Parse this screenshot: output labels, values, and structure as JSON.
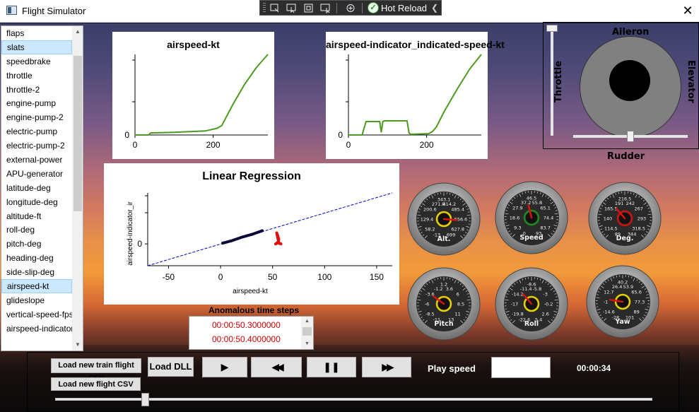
{
  "window": {
    "title": "Flight Simulator",
    "close_glyph": "✕"
  },
  "devtools": {
    "hot_reload_label": "Hot Reload",
    "check_glyph": "✓",
    "collapse_glyph": "❮"
  },
  "sidebar": {
    "selected": [
      "slats",
      "airspeed-kt"
    ],
    "items": [
      "flaps",
      "slats",
      "speedbrake",
      "throttle",
      "throttle-2",
      "engine-pump",
      "engine-pump-2",
      "electric-pump",
      "electric-pump-2",
      "external-power",
      "APU-generator",
      "latitude-deg",
      "longitude-deg",
      "altitude-ft",
      "roll-deg",
      "pitch-deg",
      "heading-deg",
      "side-slip-deg",
      "airspeed-kt",
      "glideslope",
      "vertical-speed-fps",
      "airspeed-indicator_indicated-speed-kt"
    ]
  },
  "charts": [
    {
      "type": "line",
      "title": "airspeed-kt",
      "color": "#4d9a1e",
      "x_ticks": [
        "0",
        "200"
      ],
      "y_ticks": [
        "0"
      ],
      "xlim": [
        0,
        340
      ],
      "ylim": [
        0,
        120
      ],
      "x": [
        0,
        35,
        40,
        100,
        180,
        210,
        222,
        232,
        250,
        280,
        310,
        340
      ],
      "y": [
        0,
        0,
        3,
        4,
        6,
        10,
        14,
        25,
        45,
        75,
        100,
        120
      ]
    },
    {
      "type": "line",
      "title": "airspeed-indicator_indicated-speed-kt",
      "color": "#4d9a1e",
      "x_ticks": [
        "0",
        "200"
      ],
      "y_ticks": [
        "0"
      ],
      "xlim": [
        0,
        340
      ],
      "ylim": [
        0,
        120
      ],
      "x": [
        0,
        35,
        45,
        80,
        84,
        88,
        92,
        100,
        150,
        155,
        160,
        205,
        215,
        225,
        245,
        280,
        310,
        340
      ],
      "y": [
        0,
        0,
        20,
        20,
        4,
        20,
        21,
        21,
        21,
        3,
        1,
        2,
        5,
        12,
        35,
        70,
        98,
        120
      ]
    },
    {
      "type": "scatter",
      "title": "Linear Regression",
      "xlabel": "airspeed-kt",
      "ylabel": "airspeed-indicator_ir",
      "x_ticks": [
        "-50",
        "0",
        "50",
        "100",
        "150"
      ],
      "x_tick_values": [
        -50,
        0,
        50,
        100,
        150
      ],
      "y_ticks": [
        "0"
      ],
      "y_tick_values": [
        0
      ],
      "xlim": [
        -70,
        165
      ],
      "ylim": [
        -30,
        70
      ],
      "regression_line": {
        "x": [
          -70,
          165
        ],
        "y": [
          -30,
          70
        ],
        "color": "#0000cc"
      },
      "series": [
        {
          "color": "#0a0a3a",
          "x": [
            2,
            10,
            20,
            30,
            40
          ],
          "y": [
            1,
            4,
            9,
            13,
            18
          ]
        },
        {
          "color": "#e01010",
          "x": [
            53,
            55,
            56,
            55,
            54,
            56,
            58
          ],
          "y": [
            0,
            2,
            6,
            11,
            15,
            1,
            0
          ]
        }
      ]
    }
  ],
  "anomalies": {
    "title": "Anomalous time steps",
    "rows": [
      "00:00:50.3000000",
      "00:00:50.4000000"
    ]
  },
  "joystick": {
    "top_label": "Aileron",
    "bottom_label": "Rudder",
    "left_label": "Throttle",
    "right_label": "Elevator",
    "throttle_level": 1.0,
    "rudder_level": 0.5,
    "outer_color": "#808080",
    "knob_color": "#000000"
  },
  "gauges": [
    {
      "name": "Alt.",
      "ring": "#e8d000",
      "ticks": [
        "271.8",
        "343.1",
        "414.2",
        "200.6",
        "485.4",
        "129.4",
        "556.6",
        "58.2",
        "627.8",
        "-13",
        "699"
      ],
      "needle": 0.85
    },
    {
      "name": "Speed",
      "ring": "#1a8a1a",
      "ticks": [
        "37.2",
        "46.5",
        "55.8",
        "27.9",
        "65.1",
        "18.6",
        "74.4",
        "9.3",
        "83.7",
        "0",
        "93"
      ],
      "needle": 0.45
    },
    {
      "name": "Deg.",
      "ring": "#d01010",
      "ticks": [
        "191",
        "216.5",
        "242",
        "165.5",
        "267",
        "140",
        "293",
        "114.5",
        "318.5",
        "89",
        "344"
      ],
      "needle": 0.35
    },
    {
      "name": "Pitch",
      "ring": "#e8d000",
      "ticks": [
        "-1.2",
        "1.2",
        "3.6",
        "-3.6",
        "6",
        "-6",
        "8.5",
        "-8.5",
        "11",
        "-11",
        "13"
      ],
      "needle": 0.3
    },
    {
      "name": "Roll",
      "ring": "#e8d000",
      "ticks": [
        "-11.4",
        "-8.6",
        "-5.8",
        "-14.2",
        "-3",
        "-17",
        "-0.2",
        "-19.8",
        "2.6",
        "-22.6",
        "5.4"
      ],
      "needle": 0.35
    },
    {
      "name": "Yaw",
      "ring": "#e8d000",
      "ticks": [
        "26.4",
        "40.2",
        "53.9",
        "12.7",
        "65.6",
        "-1",
        "77.3",
        "-14.6",
        "89",
        "-28",
        "101"
      ],
      "needle": 0.2
    }
  ],
  "controls": {
    "load_train_csv": "Load new train flight CSV",
    "load_flight_csv": "Load new flight CSV",
    "load_dll": "Load DLL",
    "play_icon": "▶",
    "rewind_icon": "◀◀",
    "pause_icon": "❚❚",
    "forward_icon": "▶▶",
    "play_speed_label": "Play speed",
    "play_speed_value": "",
    "time": "00:00:34",
    "timeline_position": 0.15
  }
}
